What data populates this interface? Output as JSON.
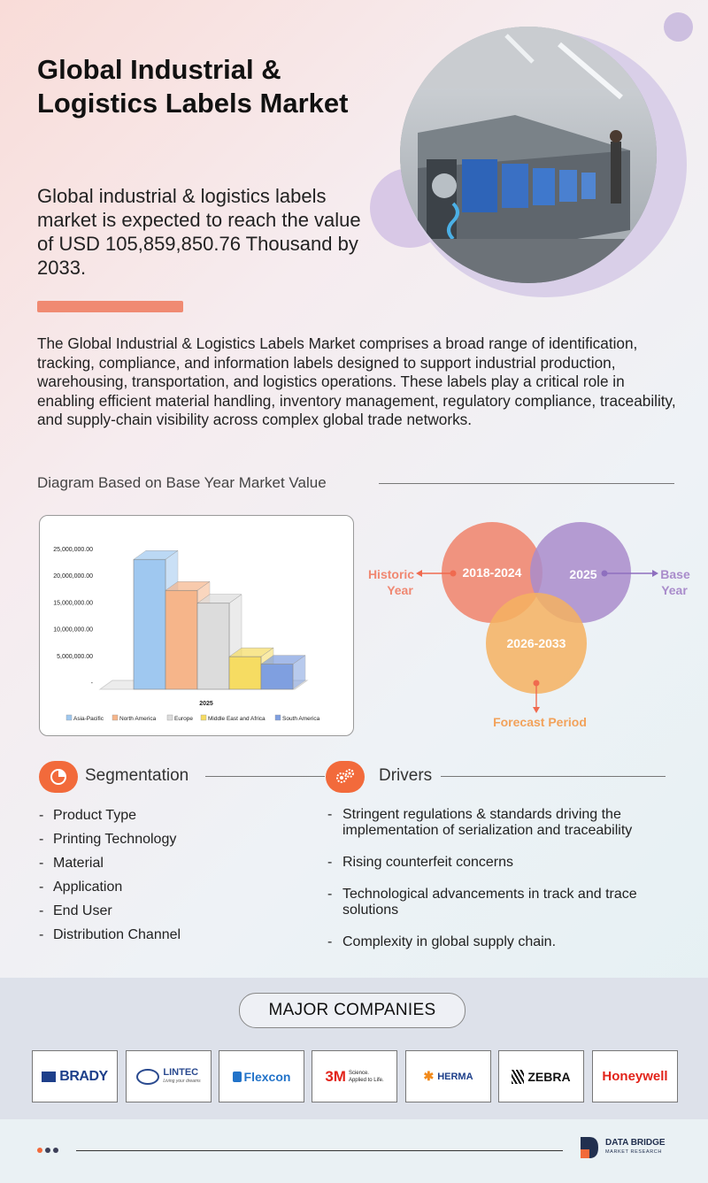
{
  "header": {
    "title_line1": "Global Industrial &",
    "title_line2": "Logistics Labels Market",
    "lead": "Global industrial & logistics labels market is expected to reach the value of USD 105,859,850.76 Thousand by 2033."
  },
  "description": "The Global Industrial & Logistics Labels Market comprises a broad range of identification, tracking, compliance, and information labels designed to support industrial production, warehousing, transportation, and logistics operations. These labels play a critical role in enabling efficient material handling, inventory management, regulatory compliance, traceability, and supply-chain visibility across complex global trade networks.",
  "diagram_heading": "Diagram Based on Base Year Market Value",
  "chart_data": {
    "type": "bar",
    "categories": [
      "2025"
    ],
    "series": [
      {
        "name": "Asia-Pacific",
        "values": [
          24300000
        ],
        "color": "#9fc8f0"
      },
      {
        "name": "North America",
        "values": [
          18500000
        ],
        "color": "#f6b58a"
      },
      {
        "name": "Europe",
        "values": [
          16100000
        ],
        "color": "#dcdcdc"
      },
      {
        "name": "Middle East and Africa",
        "values": [
          6100000
        ],
        "color": "#f6dc62"
      },
      {
        "name": "South America",
        "values": [
          4700000
        ],
        "color": "#7f9fe0"
      }
    ],
    "yticks": [
      "25,000,000.00",
      "20,000,000.00",
      "15,000,000.00",
      "10,000,000.00",
      "5,000,000.00",
      "-"
    ],
    "ylim": [
      0,
      25000000
    ],
    "xlabel": "2025",
    "legend_position": "bottom"
  },
  "venn": {
    "historic_label_line1": "Historic",
    "historic_label_line2": "Year",
    "historic_years": "2018-2024",
    "base_year": "2025",
    "base_label_line1": "Base",
    "base_label_line2": "Year",
    "forecast_years": "2026-2033",
    "forecast_label": "Forecast Period",
    "colors": {
      "historic": "#f08872",
      "base": "#b39ad0",
      "forecast": "#f4b160",
      "forecast_text": "#f2a25a"
    }
  },
  "segmentation": {
    "title": "Segmentation",
    "items": [
      "Product Type",
      "Printing Technology",
      "Material",
      "Application",
      "End User",
      "Distribution Channel"
    ]
  },
  "drivers": {
    "title": "Drivers",
    "items": [
      "Stringent regulations & standards driving the implementation of serialization and traceability",
      "Rising counterfeit concerns",
      "Technological advancements in track and trace solutions",
      "Complexity in global supply chain."
    ]
  },
  "companies": {
    "title": "MAJOR COMPANIES",
    "logos": [
      "BRADY",
      "LINTEC",
      "Living your dreams",
      "Flexcon",
      "3M",
      "Science.",
      "Applied to Life.",
      "HERMA",
      "ZEBRA",
      "Honeywell"
    ]
  },
  "footer": {
    "brand_line1": "DATA BRIDGE",
    "brand_line2": "MARKET RESEARCH"
  },
  "colors": {
    "accent": "#f26a3b",
    "salmon": "#f08a72",
    "lavender": "#cdbfe0"
  }
}
